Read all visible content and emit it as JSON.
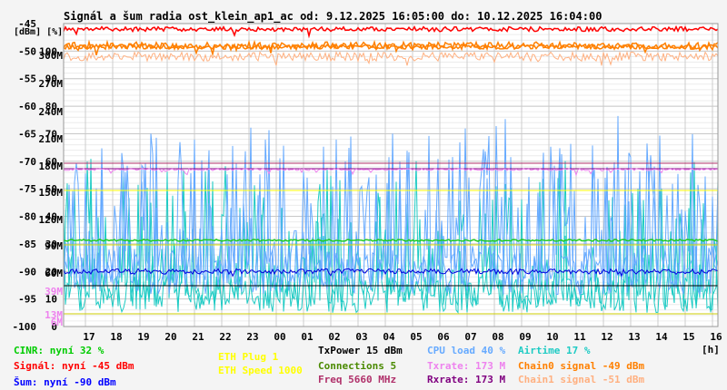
{
  "title": "Signál a šum radia ost_klein_ap1_ac od: 9.12.2025 16:05:00 do: 10.12.2025 16:04:00",
  "units_label": "[dBm] [%]",
  "x_unit": "[h]",
  "chart_data": {
    "type": "line",
    "x_ticks": [
      "17",
      "18",
      "19",
      "20",
      "21",
      "22",
      "23",
      "00",
      "01",
      "02",
      "03",
      "04",
      "05",
      "06",
      "07",
      "08",
      "09",
      "10",
      "11",
      "12",
      "13",
      "14",
      "15",
      "16"
    ],
    "x_unit": "[h]",
    "y_left_dbm_ticks": [
      "-45",
      "-50",
      "-55",
      "-60",
      "-65",
      "-70",
      "-75",
      "-80",
      "-85",
      "-90",
      "-95",
      "-100"
    ],
    "y_percent_ticks": [
      "100",
      "90",
      "80",
      "70",
      "60",
      "50",
      "40",
      "30",
      "20",
      "10",
      "0"
    ],
    "y_rate_ticks": [
      "300M",
      "270M",
      "240M",
      "210M",
      "180M",
      "150M",
      "120M",
      "90M",
      "60M",
      "39M",
      "13M",
      "6M"
    ],
    "ylim_dbm": [
      -100,
      -45
    ],
    "series": [
      {
        "name": "CINR",
        "unit": "%",
        "color": "#1ecbc4",
        "current": 32
      },
      {
        "name": "Signál",
        "unit": "dBm",
        "color": "#ff0000",
        "current": -45
      },
      {
        "name": "Šum",
        "unit": "dBm",
        "color": "#0000ff",
        "current": -90
      },
      {
        "name": "CPU load",
        "unit": "%",
        "color": "#66aaff",
        "current": 40
      },
      {
        "name": "Airtime",
        "unit": "%",
        "color": "#1ecbc4",
        "current": 17
      },
      {
        "name": "Txrate",
        "unit": "M",
        "color": "#ee82ee",
        "current": 173
      },
      {
        "name": "Rxrate",
        "unit": "M",
        "color": "#800080",
        "current": 173
      },
      {
        "name": "Chain0 signal",
        "unit": "dBm",
        "color": "#ff8000",
        "current": -49
      },
      {
        "name": "Chain1 signal",
        "unit": "dBm",
        "color": "#ffb080",
        "current": -51
      },
      {
        "name": "ETH Speed",
        "unit": "",
        "color": "#ffff00",
        "current": 1000
      },
      {
        "name": "Connections",
        "unit": "",
        "color": "#228b22",
        "current": 5
      }
    ],
    "grid": true
  },
  "legend": [
    {
      "text": "CINR: nyní 32 %",
      "color": "#00cc00"
    },
    {
      "text": "Signál: nyní -45 dBm",
      "color": "#ff0000"
    },
    {
      "text": "Šum: nyní -90 dBm",
      "color": "#0000ff"
    },
    {
      "text": "ETH Plug 1",
      "color": "#ffff00"
    },
    {
      "text": "ETH Speed 1000",
      "color": "#ffff00"
    },
    {
      "text": "TxPower 15 dBm",
      "color": "#000000"
    },
    {
      "text": "Connections 5",
      "color": "#4a8a00"
    },
    {
      "text": "Freq 5660 MHz",
      "color": "#b0306a"
    },
    {
      "text": "CPU load 40 %",
      "color": "#66aaff"
    },
    {
      "text": "Txrate: 173 M",
      "color": "#ee82ee"
    },
    {
      "text": "Rxrate: 173 M",
      "color": "#800080"
    },
    {
      "text": "Airtime 17 %",
      "color": "#1ecbc4"
    },
    {
      "text": "Chain0 signal -49 dBm",
      "color": "#ff8000"
    },
    {
      "text": "Chain1 signal -51 dBm",
      "color": "#ffb080"
    }
  ]
}
